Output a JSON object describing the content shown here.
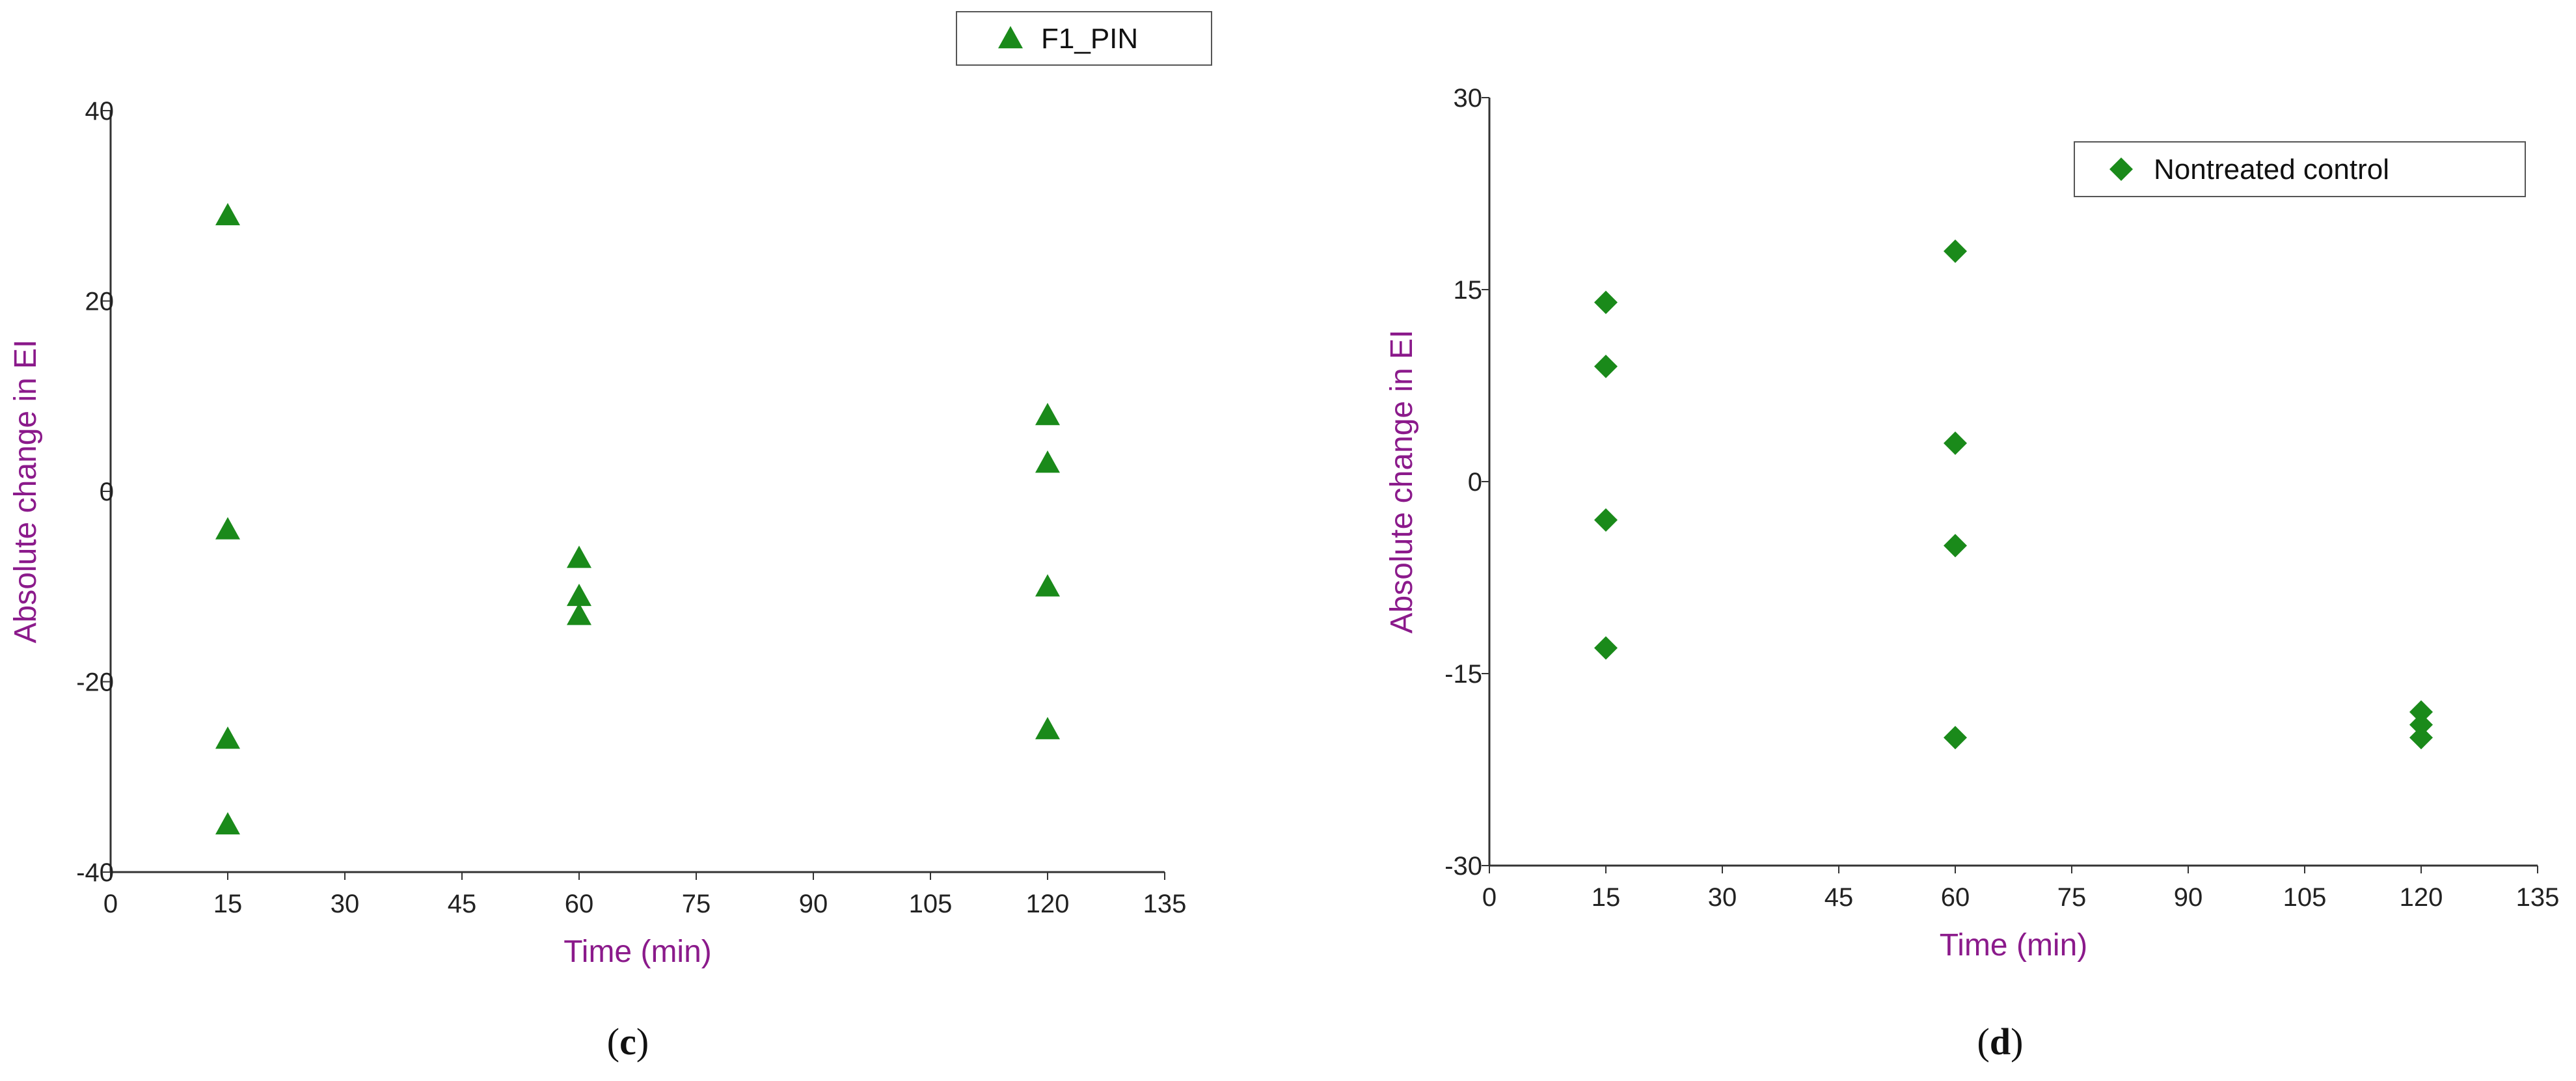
{
  "chart_data": [
    {
      "type": "scatter",
      "panel_label": "c",
      "xlabel": "Time (min)",
      "ylabel": "Absolute change in EI",
      "xlim": [
        0,
        135
      ],
      "ylim": [
        -40,
        40
      ],
      "x_ticks": [
        0,
        15,
        30,
        45,
        60,
        75,
        90,
        105,
        120,
        135
      ],
      "y_ticks": [
        -40,
        -20,
        0,
        20,
        40
      ],
      "grid": false,
      "legend_position": "top-right",
      "series": [
        {
          "name": "F1_PIN",
          "marker": "triangle",
          "color": "#1a8a1a",
          "points": [
            {
              "x": 15,
              "y": 29
            },
            {
              "x": 15,
              "y": -4
            },
            {
              "x": 15,
              "y": -26
            },
            {
              "x": 15,
              "y": -35
            },
            {
              "x": 60,
              "y": -7
            },
            {
              "x": 60,
              "y": -11
            },
            {
              "x": 60,
              "y": -13
            },
            {
              "x": 120,
              "y": 8
            },
            {
              "x": 120,
              "y": 3
            },
            {
              "x": 120,
              "y": -10
            },
            {
              "x": 120,
              "y": -25
            }
          ]
        }
      ]
    },
    {
      "type": "scatter",
      "panel_label": "d",
      "xlabel": "Time (min)",
      "ylabel": "Absolute change in EI",
      "xlim": [
        0,
        135
      ],
      "ylim": [
        -30,
        30
      ],
      "x_ticks": [
        0,
        15,
        30,
        45,
        60,
        75,
        90,
        105,
        120,
        135
      ],
      "y_ticks": [
        -30,
        -15,
        0,
        15,
        30
      ],
      "grid": false,
      "legend_position": "top-right",
      "series": [
        {
          "name": "Nontreated control",
          "marker": "diamond",
          "color": "#1a8a1a",
          "points": [
            {
              "x": 15,
              "y": 14
            },
            {
              "x": 15,
              "y": 9
            },
            {
              "x": 15,
              "y": -3
            },
            {
              "x": 15,
              "y": -13
            },
            {
              "x": 60,
              "y": 18
            },
            {
              "x": 60,
              "y": 3
            },
            {
              "x": 60,
              "y": -5
            },
            {
              "x": 60,
              "y": -20
            },
            {
              "x": 120,
              "y": -18
            },
            {
              "x": 120,
              "y": -19
            },
            {
              "x": 120,
              "y": -20
            }
          ]
        }
      ]
    }
  ]
}
